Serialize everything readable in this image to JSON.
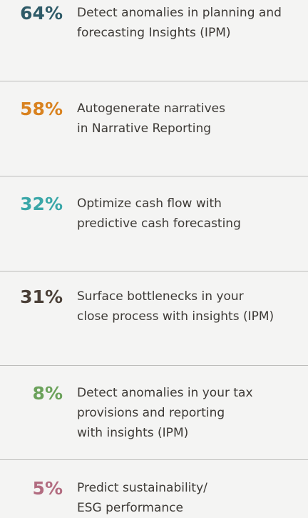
{
  "items": [
    {
      "percent": "64%",
      "color": "#2f5b68",
      "lines": [
        "Detect anomalies in planning and",
        "forecasting Insights (IPM)"
      ]
    },
    {
      "percent": "58%",
      "color": "#d9821f",
      "lines": [
        "Autogenerate narratives",
        "in Narrative Reporting"
      ]
    },
    {
      "percent": "32%",
      "color": "#3aa7a8",
      "lines": [
        "Optimize cash flow with",
        "predictive cash forecasting"
      ]
    },
    {
      "percent": "31%",
      "color": "#4b4038",
      "lines": [
        "Surface bottlenecks in your",
        "close process with insights (IPM)"
      ]
    },
    {
      "percent": "8%",
      "color": "#6ba25b",
      "lines": [
        "Detect anomalies in your tax",
        "provisions and reporting",
        "with insights (IPM)"
      ]
    },
    {
      "percent": "5%",
      "color": "#b26c80",
      "lines": [
        "Predict sustainability/",
        "ESG performance"
      ]
    }
  ]
}
